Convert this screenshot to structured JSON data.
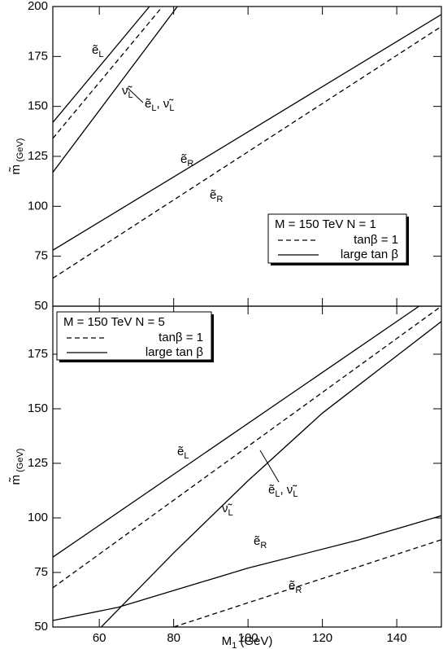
{
  "chart_data": [
    {
      "type": "line",
      "ylabel": [
        "m̃",
        " (GeV)"
      ],
      "xlim": [
        47.5,
        152
      ],
      "xticks": [
        60,
        80,
        100,
        120,
        140
      ],
      "show_xtick_labels": false,
      "ylim": [
        50,
        200
      ],
      "yticks": [
        50,
        75,
        100,
        125,
        150,
        175,
        200
      ],
      "legend": {
        "title": "M = 150 TeV  N = 1",
        "entries": [
          {
            "label": "tanβ = 1",
            "dash": true
          },
          {
            "label": "large tan β",
            "dash": false
          }
        ]
      },
      "series": [
        {
          "dash": false,
          "x": [
            47.5,
            73.5
          ],
          "values": [
            142,
            200
          ]
        },
        {
          "dash": true,
          "x": [
            47.5,
            77
          ],
          "values": [
            134,
            200
          ]
        },
        {
          "dash": false,
          "x": [
            47.5,
            81
          ],
          "values": [
            117,
            200
          ]
        },
        {
          "dash": false,
          "x": [
            47.5,
            152
          ],
          "values": [
            78,
            196
          ]
        },
        {
          "dash": true,
          "x": [
            47.5,
            152
          ],
          "values": [
            64,
            190
          ]
        }
      ],
      "annotations": [
        [
          "ẽ",
          "L"
        ],
        [
          "ẽ",
          "L",
          ", ν̃",
          "L"
        ],
        [
          "ν̃",
          "L"
        ],
        [
          "ẽ",
          "R"
        ],
        [
          "ẽ",
          "R"
        ]
      ]
    },
    {
      "type": "line",
      "ylabel": [
        "m̃",
        " (GeV)"
      ],
      "xlabel": [
        "M",
        "1",
        " (GeV)"
      ],
      "xlim": [
        47.5,
        152
      ],
      "xticks": [
        60,
        80,
        100,
        120,
        140
      ],
      "show_xtick_labels": true,
      "ylim": [
        50,
        197
      ],
      "yticks": [
        50,
        75,
        100,
        125,
        150,
        175
      ],
      "legend": {
        "title": "M = 150 TeV  N = 5",
        "entries": [
          {
            "label": "tanβ = 1",
            "dash": true
          },
          {
            "label": "large tan β",
            "dash": false
          }
        ]
      },
      "series": [
        {
          "dash": false,
          "x": [
            47.5,
            146
          ],
          "values": [
            82,
            197
          ]
        },
        {
          "dash": true,
          "x": [
            47.5,
            152
          ],
          "values": [
            68,
            197
          ]
        },
        {
          "dash": false,
          "x": [
            60.5,
            80,
            100,
            120,
            152
          ],
          "values": [
            50,
            84,
            117,
            148,
            190
          ]
        },
        {
          "dash": false,
          "x": [
            47.5,
            65,
            100,
            130,
            152
          ],
          "values": [
            53,
            59,
            77,
            90,
            101
          ]
        },
        {
          "dash": true,
          "x": [
            80,
            152
          ],
          "values": [
            50,
            90
          ]
        }
      ],
      "annotations": [
        [
          "ẽ",
          "L"
        ],
        [
          "ẽ",
          "L",
          ", ν̃",
          "L"
        ],
        [
          "ν̃",
          "L"
        ],
        [
          "ẽ",
          "R"
        ],
        [
          "ẽ",
          "R"
        ]
      ]
    }
  ]
}
